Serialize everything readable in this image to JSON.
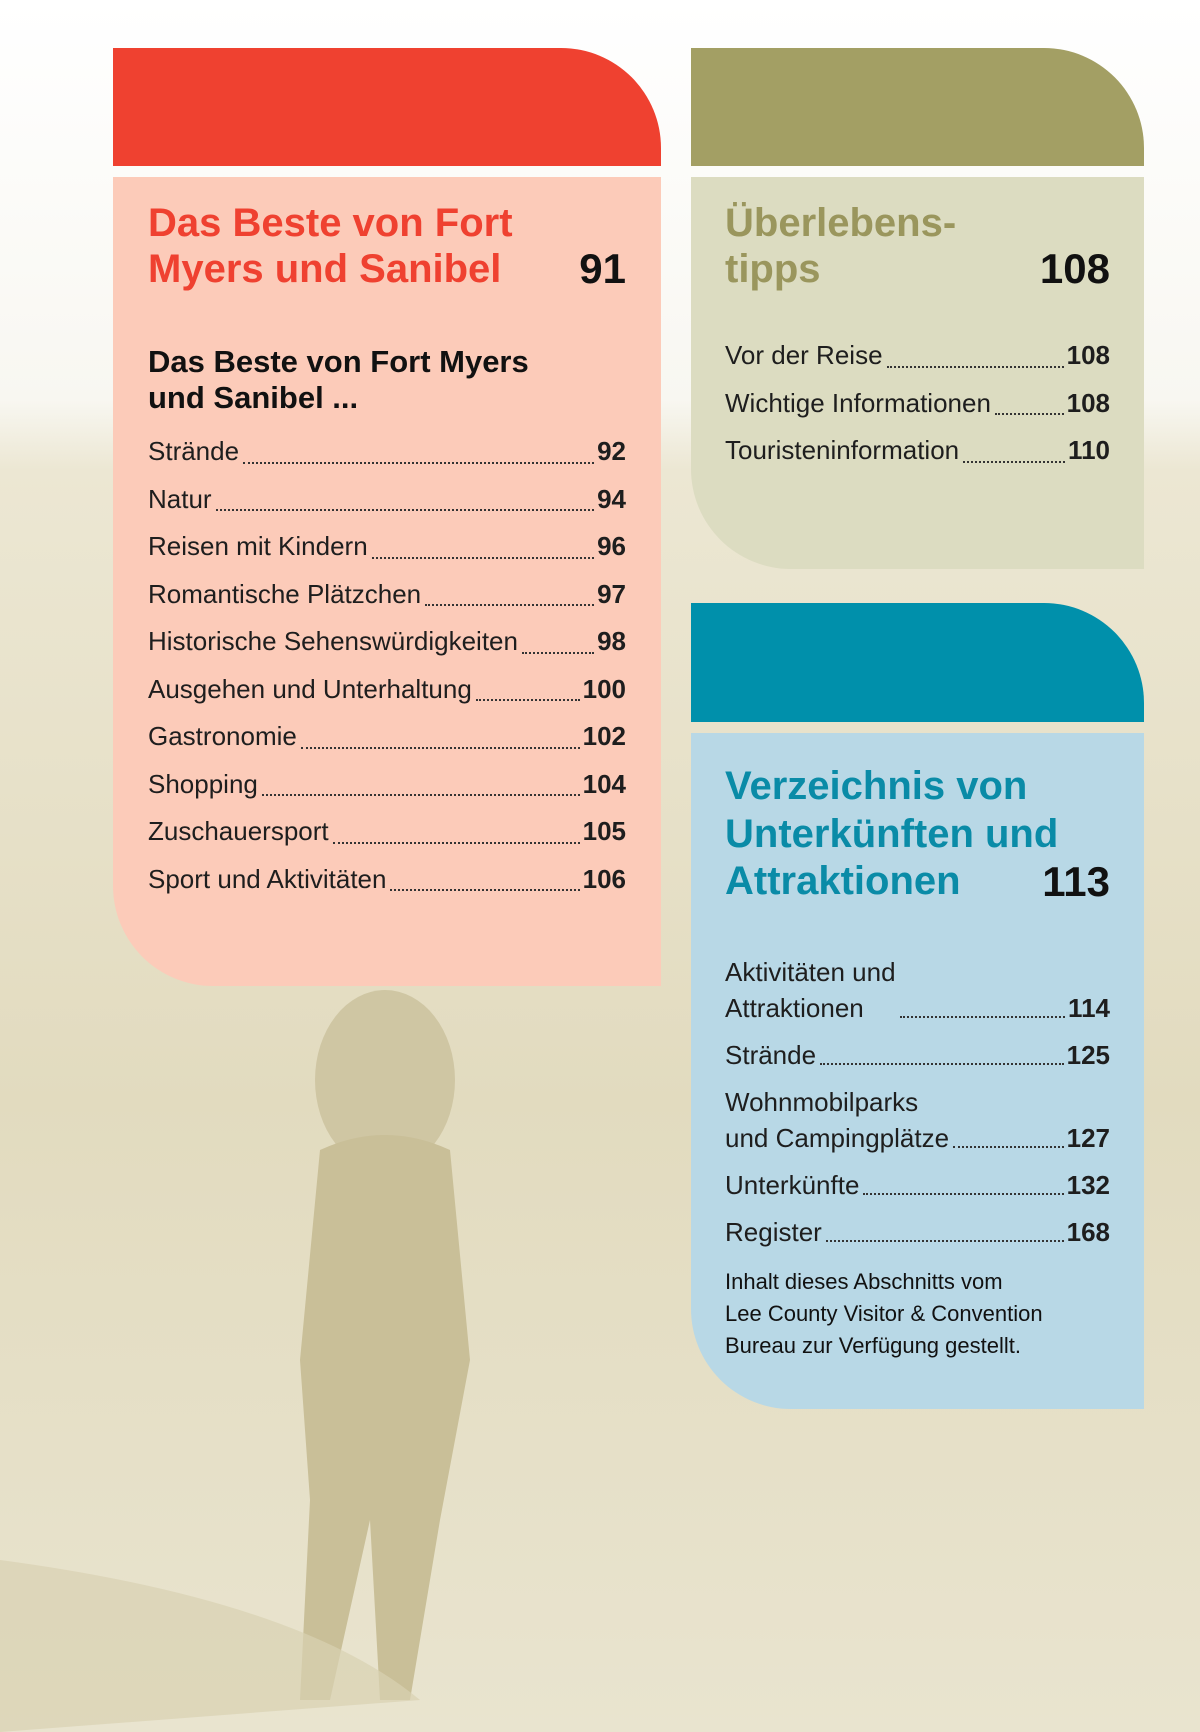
{
  "sections": [
    {
      "title_lines": [
        "Das Beste von Fort",
        "Myers und Sanibel"
      ],
      "page": 91,
      "subheading_lines": [
        "Das Beste von Fort Myers",
        "und Sanibel ..."
      ],
      "entries": [
        {
          "label": "Strände",
          "page": 92
        },
        {
          "label": "Natur",
          "page": 94
        },
        {
          "label": "Reisen mit Kindern",
          "page": 96
        },
        {
          "label": "Romantische Plätzchen",
          "page": 97
        },
        {
          "label": "Historische Sehenswürdigkeiten",
          "page": 98
        },
        {
          "label": "Ausgehen und Unterhaltung",
          "page": 100
        },
        {
          "label": "Gastronomie",
          "page": 102
        },
        {
          "label": "Shopping",
          "page": 104
        },
        {
          "label": "Zuschauersport",
          "page": 105
        },
        {
          "label": "Sport und Aktivitäten",
          "page": 106
        }
      ]
    },
    {
      "title_lines": [
        "Überlebens-",
        "tipps"
      ],
      "page": 108,
      "entries": [
        {
          "label": "Vor der Reise",
          "page": 108
        },
        {
          "label": "Wichtige Informationen",
          "page": 108
        },
        {
          "label": "Touristeninformation",
          "page": 110
        }
      ]
    },
    {
      "title_lines": [
        "Verzeichnis von",
        "Unterkünften und",
        "Attraktionen"
      ],
      "page": 113,
      "entries": [
        {
          "label": [
            "Aktivitäten und",
            "Attraktionen"
          ],
          "page": 114
        },
        {
          "label": "Strände",
          "page": 125
        },
        {
          "label": [
            "Wohnmobilparks",
            "und Campingplätze"
          ],
          "page": 127
        },
        {
          "label": "Unterkünfte",
          "page": 132
        },
        {
          "label": "Register",
          "page": 168
        }
      ],
      "note_lines": [
        "Inhalt dieses Abschnitts vom",
        "Lee County Visitor & Convention",
        "Bureau zur Verfügung gestellt."
      ]
    }
  ]
}
